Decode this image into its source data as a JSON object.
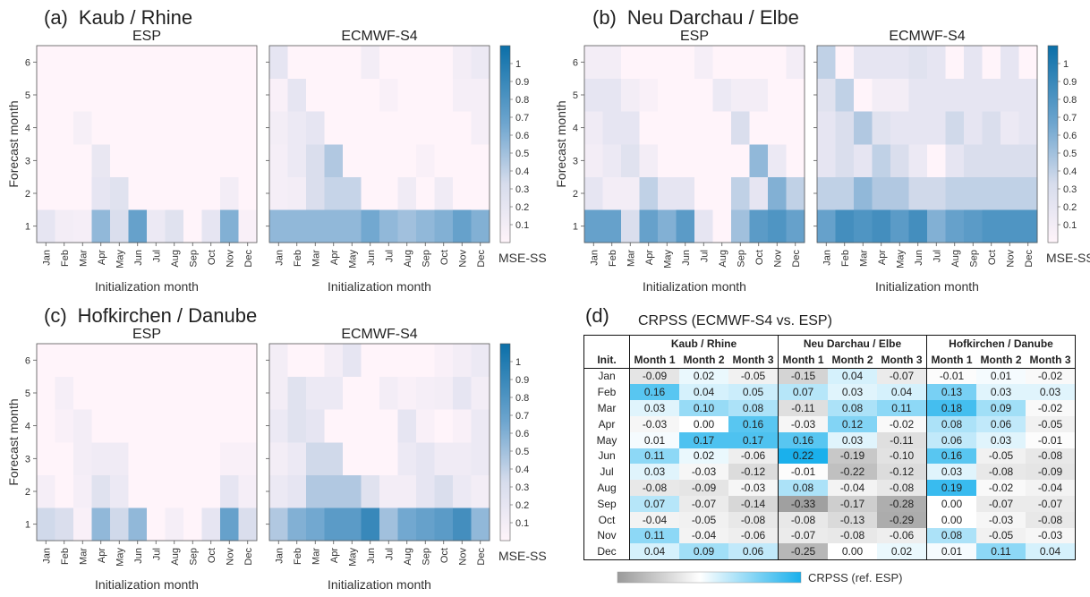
{
  "panels": [
    {
      "letter": "(a)",
      "name": "Kaub / Rhine"
    },
    {
      "letter": "(b)",
      "name": "Neu Darchau / Elbe"
    },
    {
      "letter": "(c)",
      "name": "Hofkirchen / Danube"
    }
  ],
  "panel_d": {
    "letter": "(d)",
    "title": "CRPSS (ECMWF-S4 vs. ESP)",
    "colorbar_label": "CRPSS (ref. ESP)"
  },
  "colors": {
    "heat_low": "#fff4fa",
    "heat_high": "#0b6fa8",
    "table_neg": "#bdbdbd",
    "table_pos": "#1ab0ec"
  },
  "chart_data": [
    {
      "type": "heatmap",
      "title": "(a) Kaub / Rhine",
      "subplots": [
        "ESP",
        "ECMWF-S4"
      ],
      "xlabel": "Initialization month",
      "ylabel": "Forecast month",
      "x": [
        "Jan",
        "Feb",
        "Mar",
        "Apr",
        "May",
        "Jun",
        "Jul",
        "Aug",
        "Sep",
        "Oct",
        "Nov",
        "Dec"
      ],
      "y": [
        1,
        2,
        3,
        4,
        5,
        6
      ],
      "colorbar": {
        "label": "MSE-SS",
        "ticks": [
          0.1,
          0.2,
          0.3,
          0.4,
          0.5,
          0.6,
          0.7,
          0.8,
          0.9,
          1
        ],
        "range": [
          0,
          1.1
        ]
      },
      "values": {
        "ESP": [
          [
            0.2,
            0.1,
            0.08,
            0.55,
            0.3,
            0.7,
            0.15,
            0.25,
            0.0,
            0.2,
            0.6,
            0.05
          ],
          [
            0.0,
            0.0,
            0.0,
            0.2,
            0.25,
            0.0,
            0.0,
            0.0,
            0.0,
            0.0,
            0.1,
            0.0
          ],
          [
            0.0,
            0.0,
            0.0,
            0.18,
            0.0,
            0.0,
            0.0,
            0.0,
            0.0,
            0.0,
            0.0,
            0.0
          ],
          [
            0.0,
            0.0,
            0.07,
            0.0,
            0.0,
            0.0,
            0.0,
            0.0,
            0.0,
            0.0,
            0.0,
            0.0
          ],
          [
            0.0,
            0.0,
            0.0,
            0.0,
            0.0,
            0.0,
            0.0,
            0.0,
            0.0,
            0.0,
            0.0,
            0.0
          ],
          [
            0.0,
            0.0,
            0.0,
            0.0,
            0.0,
            0.0,
            0.0,
            0.0,
            0.0,
            0.0,
            0.0,
            0.0
          ]
        ],
        "ECMWF-S4": [
          [
            0.55,
            0.55,
            0.55,
            0.55,
            0.55,
            0.65,
            0.55,
            0.5,
            0.55,
            0.6,
            0.7,
            0.6
          ],
          [
            0.08,
            0.1,
            0.3,
            0.38,
            0.38,
            0.0,
            0.0,
            0.12,
            0.0,
            0.12,
            0.0,
            0.0
          ],
          [
            0.08,
            0.15,
            0.3,
            0.45,
            0.0,
            0.0,
            0.0,
            0.0,
            0.05,
            0.0,
            0.0,
            0.0
          ],
          [
            0.1,
            0.15,
            0.2,
            0.0,
            0.0,
            0.0,
            0.0,
            0.0,
            0.0,
            0.0,
            0.0,
            0.08
          ],
          [
            0.05,
            0.2,
            0.0,
            0.0,
            0.0,
            0.0,
            0.05,
            0.0,
            0.0,
            0.0,
            0.08,
            0.08
          ],
          [
            0.2,
            0.0,
            0.0,
            0.0,
            0.0,
            0.1,
            0.0,
            0.0,
            0.0,
            0.0,
            0.1,
            0.15
          ]
        ]
      }
    },
    {
      "type": "heatmap",
      "title": "(b) Neu Darchau / Elbe",
      "subplots": [
        "ESP",
        "ECMWF-S4"
      ],
      "xlabel": "Initialization month",
      "ylabel": "Forecast month",
      "x": [
        "Jan",
        "Feb",
        "Mar",
        "Apr",
        "May",
        "Jun",
        "Jul",
        "Aug",
        "Sep",
        "Oct",
        "Nov",
        "Dec"
      ],
      "y": [
        1,
        2,
        3,
        4,
        5,
        6
      ],
      "colorbar": {
        "label": "MSE-SS",
        "ticks": [
          0.1,
          0.2,
          0.3,
          0.4,
          0.5,
          0.6,
          0.7,
          0.8,
          0.9,
          1
        ],
        "range": [
          0,
          1.1
        ]
      },
      "values": {
        "ESP": [
          [
            0.7,
            0.7,
            0.3,
            0.7,
            0.6,
            0.75,
            0.2,
            0.0,
            0.5,
            0.75,
            0.8,
            0.7
          ],
          [
            0.2,
            0.1,
            0.1,
            0.4,
            0.2,
            0.2,
            0.0,
            0.0,
            0.4,
            0.2,
            0.6,
            0.4
          ],
          [
            0.1,
            0.15,
            0.25,
            0.1,
            0.0,
            0.0,
            0.0,
            0.0,
            0.0,
            0.55,
            0.15,
            0.0
          ],
          [
            0.12,
            0.2,
            0.2,
            0.0,
            0.0,
            0.0,
            0.0,
            0.0,
            0.3,
            0.0,
            0.0,
            0.0
          ],
          [
            0.2,
            0.2,
            0.1,
            0.05,
            0.0,
            0.0,
            0.0,
            0.15,
            0.1,
            0.1,
            0.0,
            0.0
          ],
          [
            0.1,
            0.1,
            0.0,
            0.0,
            0.0,
            0.0,
            0.08,
            0.0,
            0.0,
            0.0,
            0.0,
            0.1
          ]
        ],
        "ECMWF-S4": [
          [
            0.7,
            0.85,
            0.8,
            0.85,
            0.75,
            0.85,
            0.6,
            0.7,
            0.75,
            0.8,
            0.8,
            0.8
          ],
          [
            0.4,
            0.4,
            0.55,
            0.45,
            0.45,
            0.35,
            0.35,
            0.4,
            0.4,
            0.4,
            0.4,
            0.4
          ],
          [
            0.2,
            0.3,
            0.2,
            0.4,
            0.3,
            0.15,
            0.0,
            0.2,
            0.3,
            0.3,
            0.3,
            0.3
          ],
          [
            0.2,
            0.3,
            0.45,
            0.25,
            0.2,
            0.2,
            0.2,
            0.35,
            0.2,
            0.3,
            0.15,
            0.2
          ],
          [
            0.25,
            0.4,
            0.0,
            0.1,
            0.1,
            0.2,
            0.2,
            0.2,
            0.2,
            0.2,
            0.2,
            0.2
          ],
          [
            0.4,
            0.0,
            0.2,
            0.2,
            0.2,
            0.25,
            0.2,
            0.0,
            0.2,
            0.0,
            0.2,
            0.0
          ]
        ]
      }
    },
    {
      "type": "heatmap",
      "title": "(c) Hofkirchen / Danube",
      "subplots": [
        "ESP",
        "ECMWF-S4"
      ],
      "xlabel": "Initialization month",
      "ylabel": "Forecast month",
      "x": [
        "Jan",
        "Feb",
        "Mar",
        "Apr",
        "May",
        "Jun",
        "Jul",
        "Aug",
        "Sep",
        "Oct",
        "Nov",
        "Dec"
      ],
      "y": [
        1,
        2,
        3,
        4,
        5,
        6
      ],
      "colorbar": {
        "label": "MSE-SS",
        "ticks": [
          0.1,
          0.2,
          0.3,
          0.4,
          0.5,
          0.6,
          0.7,
          0.8,
          0.9,
          1
        ],
        "range": [
          0,
          1.1
        ]
      },
      "values": {
        "ESP": [
          [
            0.35,
            0.3,
            0.05,
            0.55,
            0.35,
            0.55,
            0.0,
            0.08,
            0.0,
            0.2,
            0.7,
            0.3
          ],
          [
            0.08,
            0.0,
            0.08,
            0.25,
            0.15,
            0.0,
            0.0,
            0.0,
            0.0,
            0.0,
            0.2,
            0.08
          ],
          [
            0.0,
            0.0,
            0.1,
            0.12,
            0.12,
            0.0,
            0.0,
            0.0,
            0.0,
            0.0,
            0.05,
            0.05
          ],
          [
            0.0,
            0.05,
            0.1,
            0.0,
            0.0,
            0.0,
            0.0,
            0.0,
            0.0,
            0.0,
            0.0,
            0.0
          ],
          [
            0.0,
            0.08,
            0.0,
            0.0,
            0.0,
            0.0,
            0.0,
            0.0,
            0.0,
            0.0,
            0.0,
            0.0
          ],
          [
            0.0,
            0.0,
            0.0,
            0.0,
            0.0,
            0.0,
            0.0,
            0.0,
            0.0,
            0.0,
            0.0,
            0.0
          ]
        ],
        "ECMWF-S4": [
          [
            0.45,
            0.6,
            0.65,
            0.75,
            0.75,
            0.9,
            0.5,
            0.65,
            0.7,
            0.75,
            0.85,
            0.55
          ],
          [
            0.15,
            0.2,
            0.45,
            0.45,
            0.45,
            0.25,
            0.1,
            0.1,
            0.2,
            0.3,
            0.15,
            0.1
          ],
          [
            0.1,
            0.15,
            0.35,
            0.35,
            0.0,
            0.0,
            0.0,
            0.15,
            0.2,
            0.12,
            0.12,
            0.15
          ],
          [
            0.15,
            0.25,
            0.2,
            0.0,
            0.0,
            0.0,
            0.0,
            0.2,
            0.05,
            0.0,
            0.05,
            0.15
          ],
          [
            0.1,
            0.25,
            0.15,
            0.15,
            0.0,
            0.0,
            0.1,
            0.05,
            0.08,
            0.1,
            0.2,
            0.1
          ],
          [
            0.1,
            0.0,
            0.0,
            0.1,
            0.2,
            0.0,
            0.0,
            0.0,
            0.0,
            0.05,
            0.1,
            0.15
          ]
        ]
      }
    },
    {
      "type": "table",
      "title": "(d) CRPSS (ECMWF-S4 vs. ESP)",
      "colorbar_label": "CRPSS (ref. ESP)",
      "row_header": "Init.",
      "stations": [
        "Kaub / Rhine",
        "Neu Darchau / Elbe",
        "Hofkirchen / Danube"
      ],
      "columns": [
        "Month 1",
        "Month 2",
        "Month 3"
      ],
      "rows": [
        {
          "init": "Jan",
          "values": [
            "-0.09",
            "0.02",
            "-0.05",
            "-0.15",
            "0.04",
            "-0.07",
            "-0.01",
            "0.01",
            "-0.02"
          ]
        },
        {
          "init": "Feb",
          "values": [
            "0.16",
            "0.04",
            "0.05",
            "0.07",
            "0.03",
            "0.04",
            "0.13",
            "0.03",
            "0.03"
          ]
        },
        {
          "init": "Mar",
          "values": [
            "0.03",
            "0.10",
            "0.08",
            "-0.11",
            "0.08",
            "0.11",
            "0.18",
            "0.09",
            "-0.02"
          ]
        },
        {
          "init": "Apr",
          "values": [
            "-0.03",
            "0.00",
            "0.16",
            "-0.03",
            "0.12",
            "-0.02",
            "0.08",
            "0.06",
            "-0.05"
          ]
        },
        {
          "init": "May",
          "values": [
            "0.01",
            "0.17",
            "0.17",
            "0.16",
            "0.03",
            "-0.11",
            "0.06",
            "0.03",
            "-0.01"
          ]
        },
        {
          "init": "Jun",
          "values": [
            "0.11",
            "0.02",
            "-0.06",
            "0.22",
            "-0.19",
            "-0.10",
            "0.16",
            "-0.05",
            "-0.08"
          ]
        },
        {
          "init": "Jul",
          "values": [
            "0.03",
            "-0.03",
            "-0.12",
            "-0.01",
            "-0.22",
            "-0.12",
            "0.03",
            "-0.08",
            "-0.09"
          ]
        },
        {
          "init": "Aug",
          "values": [
            "-0.08",
            "-0.09",
            "-0.03",
            "0.08",
            "-0.04",
            "-0.08",
            "0.19",
            "-0.02",
            "-0.04"
          ]
        },
        {
          "init": "Sep",
          "values": [
            "0.07",
            "-0.07",
            "-0.14",
            "-0.33",
            "-0.17",
            "-0.28",
            "0.00",
            "-0.07",
            "-0.07"
          ]
        },
        {
          "init": "Oct",
          "values": [
            "-0.04",
            "-0.05",
            "-0.08",
            "-0.08",
            "-0.13",
            "-0.29",
            "0.00",
            "-0.03",
            "-0.08"
          ]
        },
        {
          "init": "Nov",
          "values": [
            "0.11",
            "-0.04",
            "-0.06",
            "-0.07",
            "-0.08",
            "-0.06",
            "0.08",
            "-0.05",
            "-0.03"
          ]
        },
        {
          "init": "Dec",
          "values": [
            "0.04",
            "0.09",
            "0.06",
            "-0.25",
            "0.00",
            "0.02",
            "0.01",
            "0.11",
            "0.04"
          ]
        }
      ]
    }
  ]
}
